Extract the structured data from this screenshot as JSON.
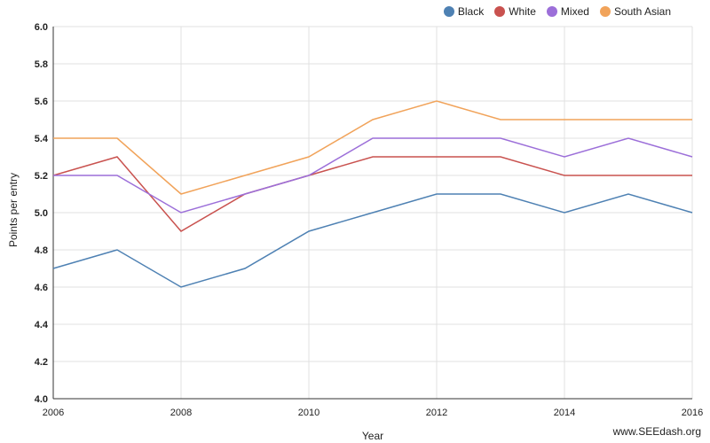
{
  "chart_data": {
    "type": "line",
    "xlabel": "Year",
    "ylabel": "Points per entry",
    "x": [
      2006,
      2007,
      2008,
      2009,
      2010,
      2011,
      2012,
      2013,
      2014,
      2015,
      2016
    ],
    "xticks": [
      2006,
      2008,
      2010,
      2012,
      2014,
      2016
    ],
    "ylim": [
      4.0,
      6.0
    ],
    "yticks": [
      "4.0",
      "4.2",
      "4.4",
      "4.6",
      "4.8",
      "5.0",
      "5.2",
      "5.4",
      "5.6",
      "5.8",
      "6.0"
    ],
    "grid": true,
    "legend_position": "top-right",
    "series": [
      {
        "name": "Black",
        "color": "#4e81b3",
        "values": [
          4.7,
          4.8,
          4.6,
          4.7,
          4.9,
          5.0,
          5.1,
          5.1,
          5.0,
          5.1,
          5.0
        ]
      },
      {
        "name": "White",
        "color": "#c9524f",
        "values": [
          5.2,
          5.3,
          4.9,
          5.1,
          5.2,
          5.3,
          5.3,
          5.3,
          5.2,
          5.2,
          5.2
        ]
      },
      {
        "name": "Mixed",
        "color": "#9c6fd9",
        "values": [
          5.2,
          5.2,
          5.0,
          5.1,
          5.2,
          5.4,
          5.4,
          5.4,
          5.3,
          5.4,
          5.3
        ]
      },
      {
        "name": "South Asian",
        "color": "#f1a35a",
        "values": [
          5.4,
          5.4,
          5.1,
          5.2,
          5.3,
          5.5,
          5.6,
          5.5,
          5.5,
          5.5,
          5.5
        ]
      }
    ]
  },
  "footer": {
    "watermark": "www.SEEdash.org"
  }
}
